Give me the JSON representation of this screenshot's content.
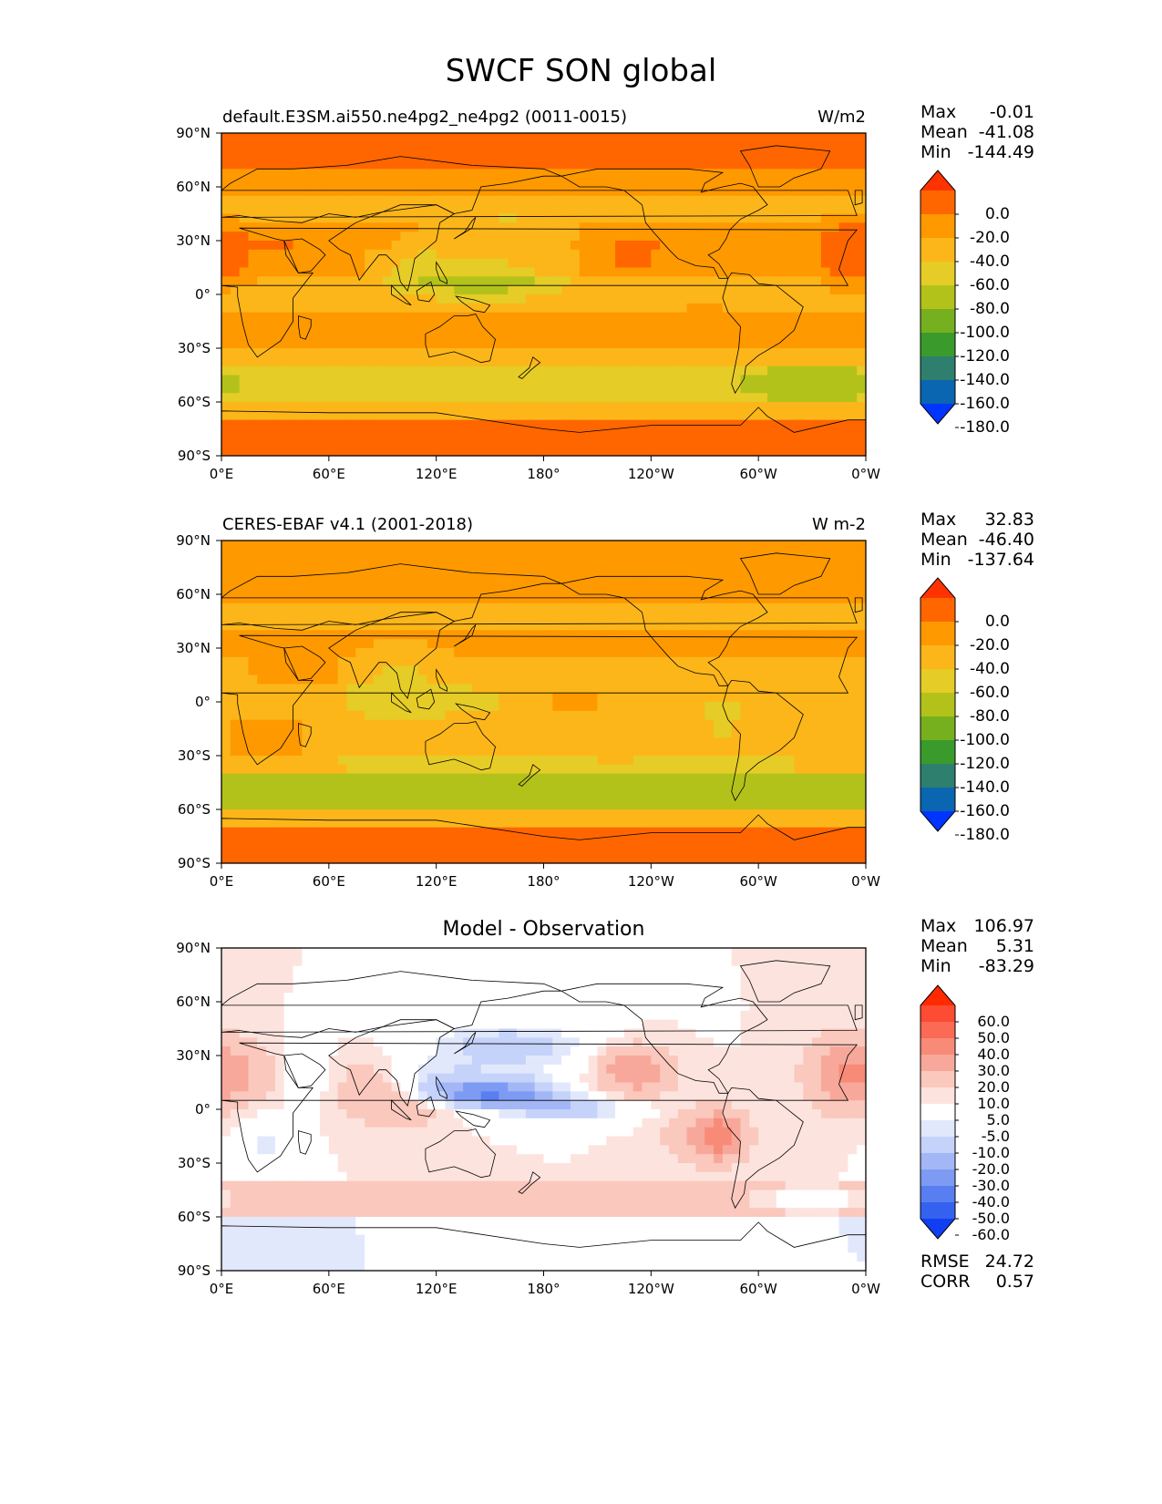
{
  "figure": {
    "title": "SWCF SON global"
  },
  "axes": {
    "lat_ticks": [
      "90°N",
      "60°N",
      "30°N",
      "0°",
      "30°S",
      "60°S",
      "90°S"
    ],
    "lon_ticks": [
      "0°E",
      "60°E",
      "120°E",
      "180°",
      "120°W",
      "60°W",
      "0°W"
    ]
  },
  "panels": [
    {
      "title": "default.E3SM.ai550.ne4pg2_ne4pg2 (0011-0015)",
      "units": "W/m2",
      "stats": {
        "max_label": "Max",
        "max": "-0.01",
        "mean_label": "Mean",
        "mean": "-41.08",
        "min_label": "Min",
        "min": "-144.49"
      },
      "colorbar": {
        "labels": [
          "0.0",
          "-20.0",
          "-40.0",
          "-60.0",
          "-80.0",
          "-100.0",
          "-120.0",
          "-140.0",
          "-160.0",
          "-180.0"
        ],
        "colors": [
          "#ff3300",
          "#ff6600",
          "#ff9900",
          "#fcb619",
          "#e6cc26",
          "#b3c21a",
          "#76b01f",
          "#3a9a2b",
          "#2e7f6e",
          "#0a66b0",
          "#0035ff"
        ]
      }
    },
    {
      "title": "CERES-EBAF v4.1 (2001-2018)",
      "units": "W m-2",
      "stats": {
        "max_label": "Max",
        "max": "32.83",
        "mean_label": "Mean",
        "mean": "-46.40",
        "min_label": "Min",
        "min": "-137.64"
      },
      "colorbar": {
        "labels": [
          "0.0",
          "-20.0",
          "-40.0",
          "-60.0",
          "-80.0",
          "-100.0",
          "-120.0",
          "-140.0",
          "-160.0",
          "-180.0"
        ],
        "colors": [
          "#ff3300",
          "#ff6600",
          "#ff9900",
          "#fcb619",
          "#e6cc26",
          "#b3c21a",
          "#76b01f",
          "#3a9a2b",
          "#2e7f6e",
          "#0a66b0",
          "#0035ff"
        ]
      }
    },
    {
      "title": "Model - Observation",
      "units": "",
      "stats": {
        "max_label": "Max",
        "max": "106.97",
        "mean_label": "Mean",
        "mean": "5.31",
        "min_label": "Min",
        "min": "-83.29"
      },
      "colorbar": {
        "labels": [
          "60.0",
          "50.0",
          "40.0",
          "30.0",
          "20.0",
          "10.0",
          "5.0",
          "-5.0",
          "-10.0",
          "-20.0",
          "-30.0",
          "-40.0",
          "-50.0",
          "-60.0"
        ],
        "colors": [
          "#ff2a00",
          "#fe4b33",
          "#fa6a55",
          "#f88b78",
          "#f8a89a",
          "#fac8bd",
          "#fde3de",
          "#ffffff",
          "#e2e8fc",
          "#c5d2fa",
          "#a3b7f7",
          "#7e9bf4",
          "#587ef1",
          "#3561ef",
          "#0f3ff0"
        ]
      },
      "metrics": {
        "rmse_label": "RMSE",
        "rmse": "24.72",
        "corr_label": "CORR",
        "corr": "0.57"
      }
    }
  ]
}
